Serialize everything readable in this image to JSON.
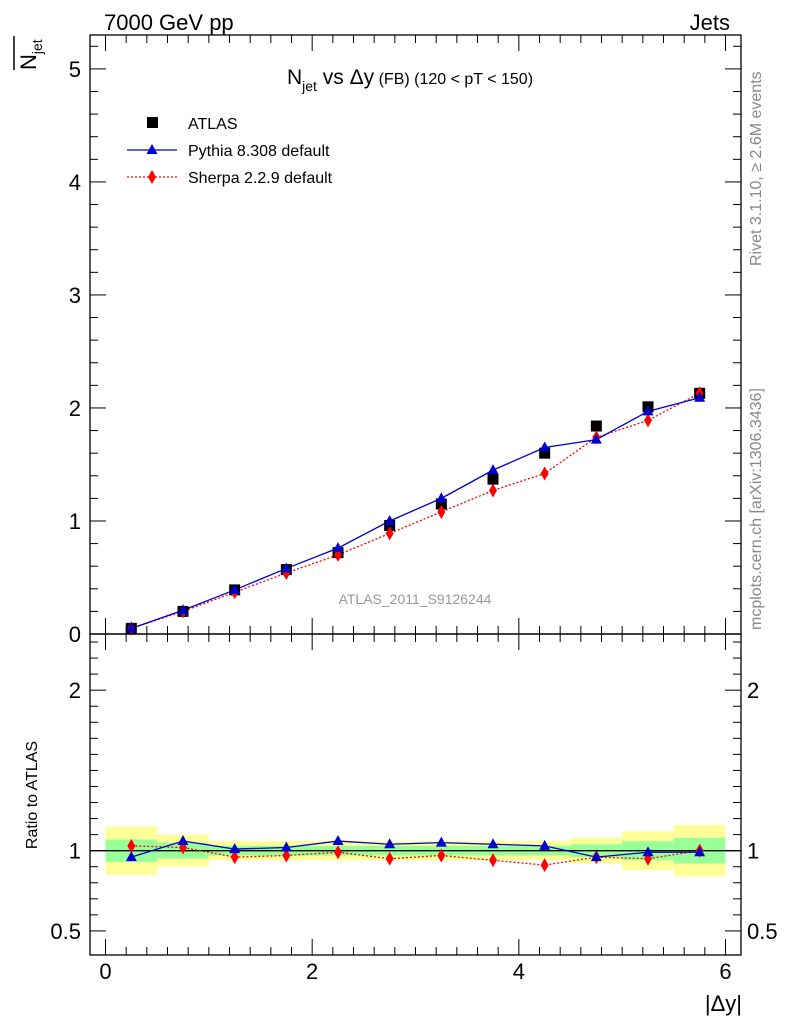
{
  "header": {
    "left": "7000 GeV pp",
    "right": "Jets"
  },
  "side_labels": {
    "rivet": "Rivet 3.1.10, ≥ 2.6M events",
    "mcplots": "mcplots.cern.ch [arXiv:1306.3436]"
  },
  "watermark": "ATLAS_2011_S9126244",
  "colors": {
    "atlas": "#000000",
    "pythia": "#0000cc",
    "sherpa": "#ff0000",
    "band_inner": "#99ff99",
    "band_outer": "#ffff99"
  },
  "chart_data": [
    {
      "type": "line",
      "title": {
        "main": "N",
        "sub": "jet",
        "rest": " vs Δy",
        "small": " (FB)",
        "cut": " (120 < pT < 150)"
      },
      "ylabel": {
        "bar": "N",
        "sub": "jet"
      },
      "xlim": [
        -0.15,
        6.15
      ],
      "ylim": [
        0,
        5.3
      ],
      "yticks": [
        0,
        1,
        2,
        3,
        4,
        5
      ],
      "ytick_labels": [
        "0",
        "1",
        "2",
        "3",
        "4",
        "5"
      ],
      "legend_position": "top-left",
      "x": [
        0.25,
        0.75,
        1.25,
        1.75,
        2.25,
        2.75,
        3.25,
        3.75,
        4.25,
        4.75,
        5.25,
        5.75
      ],
      "series": [
        {
          "name": "ATLAS",
          "marker": "square",
          "values": [
            0.05,
            0.2,
            0.39,
            0.57,
            0.72,
            0.96,
            1.15,
            1.37,
            1.6,
            1.84,
            2.01,
            2.13
          ]
        },
        {
          "name": "Pythia 8.308 default",
          "marker": "triangle",
          "style": "solid",
          "values": [
            0.05,
            0.21,
            0.39,
            0.58,
            0.76,
            1.0,
            1.2,
            1.45,
            1.65,
            1.72,
            1.97,
            2.09
          ]
        },
        {
          "name": "Sherpa 2.2.9 default",
          "marker": "diamond",
          "style": "dotted",
          "values": [
            0.05,
            0.2,
            0.37,
            0.54,
            0.7,
            0.89,
            1.08,
            1.27,
            1.42,
            1.74,
            1.89,
            2.13
          ]
        }
      ]
    },
    {
      "type": "line",
      "ylabel": "Ratio to ATLAS",
      "xlabel": "|Δy|",
      "xlim": [
        -0.15,
        6.15
      ],
      "ylim": [
        0.35,
        2.35
      ],
      "xticks": [
        0,
        2,
        4,
        6
      ],
      "xtick_labels": [
        "0",
        "2",
        "4",
        "6"
      ],
      "yticks": [
        0.5,
        1,
        2
      ],
      "ytick_labels": [
        "0.5",
        "1",
        "2"
      ],
      "x": [
        0.25,
        0.75,
        1.25,
        1.75,
        2.25,
        2.75,
        3.25,
        3.75,
        4.25,
        4.75,
        5.25,
        5.75
      ],
      "band_inner": [
        [
          0.93,
          1.07
        ],
        [
          0.95,
          1.05
        ],
        [
          0.97,
          1.03
        ],
        [
          0.97,
          1.03
        ],
        [
          0.97,
          1.03
        ],
        [
          0.97,
          1.03
        ],
        [
          0.97,
          1.03
        ],
        [
          0.97,
          1.03
        ],
        [
          0.97,
          1.03
        ],
        [
          0.96,
          1.04
        ],
        [
          0.94,
          1.06
        ],
        [
          0.92,
          1.08
        ]
      ],
      "band_outer": [
        [
          0.85,
          1.15
        ],
        [
          0.9,
          1.1
        ],
        [
          0.94,
          1.06
        ],
        [
          0.94,
          1.06
        ],
        [
          0.94,
          1.06
        ],
        [
          0.94,
          1.06
        ],
        [
          0.94,
          1.06
        ],
        [
          0.94,
          1.06
        ],
        [
          0.94,
          1.06
        ],
        [
          0.92,
          1.08
        ],
        [
          0.88,
          1.12
        ],
        [
          0.84,
          1.16
        ]
      ],
      "series": [
        {
          "name": "Pythia 8.308 default",
          "values": [
            0.96,
            1.06,
            1.01,
            1.02,
            1.06,
            1.04,
            1.05,
            1.04,
            1.03,
            0.96,
            0.99,
            0.99
          ]
        },
        {
          "name": "Sherpa 2.2.9 default",
          "values": [
            1.03,
            1.02,
            0.96,
            0.97,
            0.99,
            0.95,
            0.97,
            0.94,
            0.91,
            0.96,
            0.95,
            1.0
          ]
        }
      ]
    }
  ]
}
